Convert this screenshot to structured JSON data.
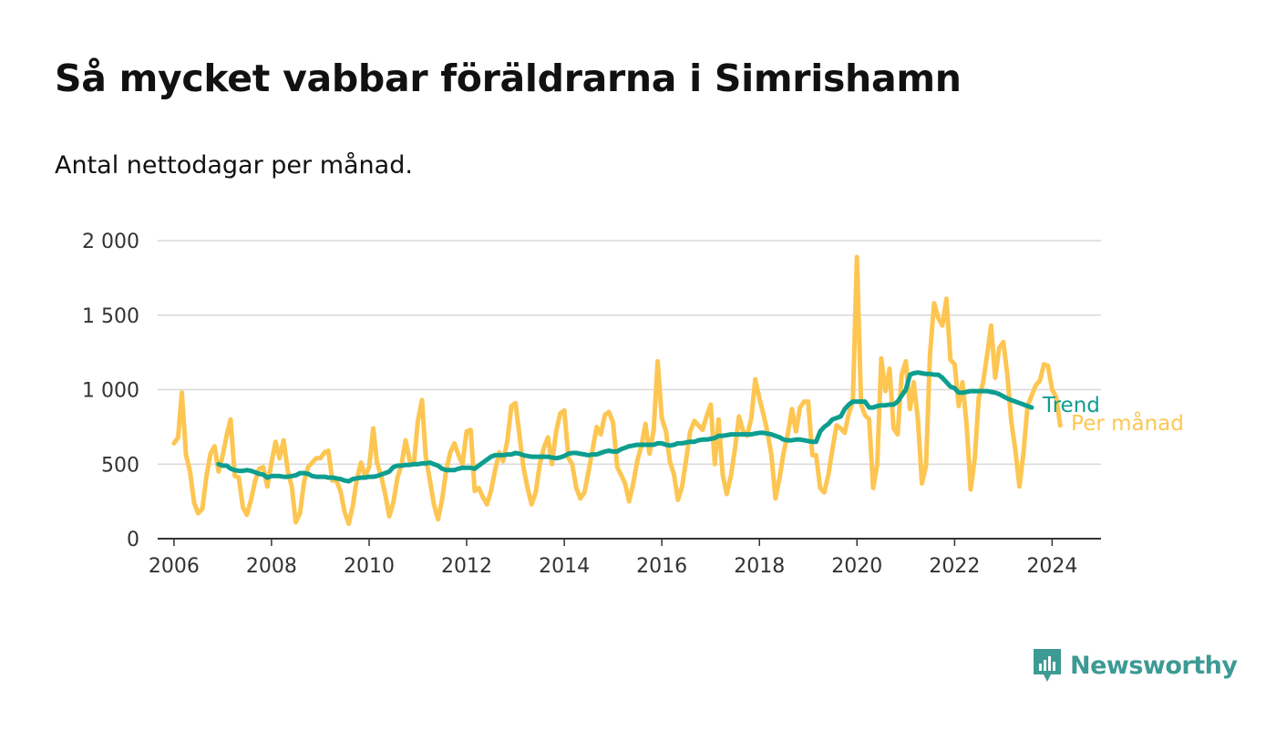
{
  "title": "Så mycket vabbar föräldrarna i Simrishamn",
  "subtitle": "Antal nettodagar per månad.",
  "brand": {
    "name": "Newsworthy",
    "icon": "newsworthy-logo-icon",
    "color": "#3d9a94"
  },
  "colors": {
    "monthly": "#fdc652",
    "trend": "#0d9e8f",
    "grid": "#d9d9d9",
    "axis": "#333333"
  },
  "chart_data": {
    "type": "line",
    "xlabel": "",
    "ylabel": "",
    "x_axis": "date",
    "xlim": [
      "2005-09-01",
      "2025-01-01"
    ],
    "ylim": [
      0,
      2000
    ],
    "y_ticks": [
      0,
      500,
      1000,
      1500,
      2000
    ],
    "y_tick_labels": [
      "0",
      "500",
      "1 000",
      "1 500",
      "2 000"
    ],
    "x_ticks": [
      "2006-01-01",
      "2008-01-01",
      "2010-01-01",
      "2012-01-01",
      "2014-01-01",
      "2016-01-01",
      "2018-01-01",
      "2020-01-01",
      "2022-01-01",
      "2024-01-01"
    ],
    "x_tick_labels": [
      "2006",
      "2008",
      "2010",
      "2012",
      "2014",
      "2016",
      "2018",
      "2020",
      "2022",
      "2024"
    ],
    "grid": true,
    "legend": "end-of-line labels",
    "series": [
      {
        "name": "Per månad",
        "start": "2006-01",
        "frequency": "monthly",
        "values": [
          640,
          680,
          980,
          560,
          450,
          240,
          170,
          200,
          420,
          570,
          620,
          450,
          560,
          700,
          800,
          420,
          410,
          210,
          160,
          260,
          390,
          470,
          480,
          350,
          510,
          650,
          540,
          660,
          460,
          350,
          110,
          170,
          380,
          480,
          510,
          540,
          540,
          580,
          590,
          390,
          390,
          320,
          180,
          100,
          220,
          400,
          510,
          420,
          480,
          740,
          510,
          420,
          300,
          150,
          240,
          410,
          500,
          660,
          520,
          500,
          790,
          930,
          550,
          390,
          230,
          130,
          260,
          460,
          580,
          640,
          560,
          500,
          720,
          730,
          320,
          340,
          280,
          230,
          320,
          460,
          580,
          520,
          660,
          890,
          910,
          680,
          480,
          340,
          230,
          310,
          500,
          610,
          680,
          500,
          720,
          840,
          860,
          540,
          500,
          340,
          270,
          310,
          450,
          600,
          750,
          700,
          830,
          850,
          780,
          480,
          430,
          370,
          250,
          370,
          520,
          620,
          770,
          570,
          730,
          1190,
          810,
          720,
          520,
          430,
          260,
          350,
          530,
          720,
          790,
          760,
          730,
          820,
          900,
          500,
          800,
          430,
          300,
          420,
          600,
          820,
          720,
          690,
          810,
          1070,
          940,
          830,
          720,
          560,
          270,
          410,
          580,
          700,
          870,
          720,
          880,
          920,
          920,
          560,
          560,
          340,
          310,
          430,
          600,
          760,
          740,
          710,
          840,
          920,
          1890,
          900,
          830,
          800,
          340,
          500,
          1210,
          990,
          1140,
          740,
          700,
          1100,
          1190,
          870,
          1050,
          800,
          370,
          490,
          1240,
          1580,
          1480,
          1430,
          1610,
          1200,
          1170,
          890,
          1050,
          760,
          330,
          540,
          950,
          1040,
          1230,
          1430,
          1080,
          1280,
          1320,
          1090,
          790,
          590,
          350,
          580,
          890,
          960,
          1030,
          1060,
          1170,
          1160,
          1000,
          950,
          760
        ]
      },
      {
        "name": "Trend",
        "start": "2006-12",
        "frequency": "monthly",
        "values": [
          500,
          490,
          490,
          470,
          460,
          455,
          455,
          460,
          455,
          445,
          435,
          430,
          410,
          420,
          420,
          420,
          415,
          415,
          420,
          425,
          440,
          440,
          435,
          420,
          415,
          415,
          415,
          410,
          410,
          405,
          400,
          390,
          385,
          400,
          405,
          410,
          410,
          415,
          415,
          420,
          430,
          440,
          450,
          480,
          490,
          490,
          495,
          495,
          500,
          500,
          505,
          505,
          510,
          500,
          490,
          470,
          460,
          460,
          460,
          470,
          475,
          475,
          475,
          470,
          490,
          510,
          530,
          550,
          560,
          560,
          560,
          565,
          565,
          575,
          570,
          560,
          555,
          550,
          550,
          550,
          550,
          550,
          545,
          540,
          545,
          555,
          570,
          575,
          575,
          570,
          565,
          560,
          565,
          565,
          575,
          585,
          590,
          585,
          585,
          600,
          610,
          620,
          625,
          630,
          630,
          630,
          630,
          630,
          640,
          640,
          630,
          625,
          630,
          640,
          640,
          645,
          650,
          650,
          660,
          665,
          665,
          670,
          675,
          690,
          690,
          695,
          700,
          700,
          700,
          700,
          700,
          700,
          705,
          710,
          710,
          705,
          700,
          690,
          680,
          665,
          660,
          660,
          665,
          665,
          660,
          655,
          650,
          650,
          720,
          750,
          770,
          800,
          810,
          820,
          870,
          900,
          920,
          920,
          920,
          920,
          880,
          880,
          890,
          895,
          895,
          900,
          900,
          920,
          960,
          1000,
          1100,
          1110,
          1115,
          1110,
          1105,
          1105,
          1100,
          1100,
          1080,
          1050,
          1020,
          1010,
          980,
          980,
          985,
          990,
          990,
          990,
          990,
          990,
          985,
          980,
          970,
          955,
          940,
          930,
          920,
          910,
          900,
          890,
          880
        ]
      }
    ]
  }
}
